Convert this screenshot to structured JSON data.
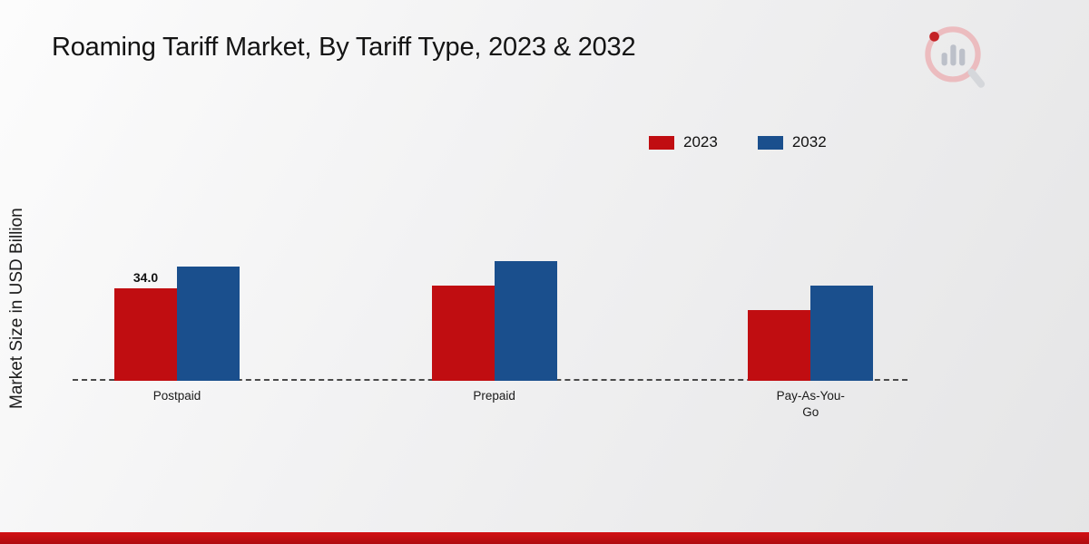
{
  "title": "Roaming Tariff Market, By Tariff Type, 2023 & 2032",
  "icons": {
    "brand_logo": "magnifier-bar-chart-logo"
  },
  "footer": {
    "stripe_color": "#c30d10"
  },
  "chart_data": {
    "type": "bar",
    "title": "Roaming Tariff Market, By Tariff Type, 2023 & 2032",
    "xlabel": "",
    "ylabel": "Market Size in USD Billion",
    "categories": [
      "Postpaid",
      "Prepaid",
      "Pay-As-You-Go"
    ],
    "series": [
      {
        "name": "2023",
        "color": "#c00d11",
        "values": [
          34.0,
          35.0,
          26.0
        ]
      },
      {
        "name": "2032",
        "color": "#1a4f8d",
        "values": [
          42.0,
          44.0,
          35.0
        ]
      }
    ],
    "annotations": [
      {
        "series_index": 0,
        "category_index": 0,
        "text": "34.0"
      }
    ],
    "ylim": [
      0,
      50
    ],
    "grid": false,
    "baseline_style": "dashed",
    "legend_position": "top-right"
  }
}
